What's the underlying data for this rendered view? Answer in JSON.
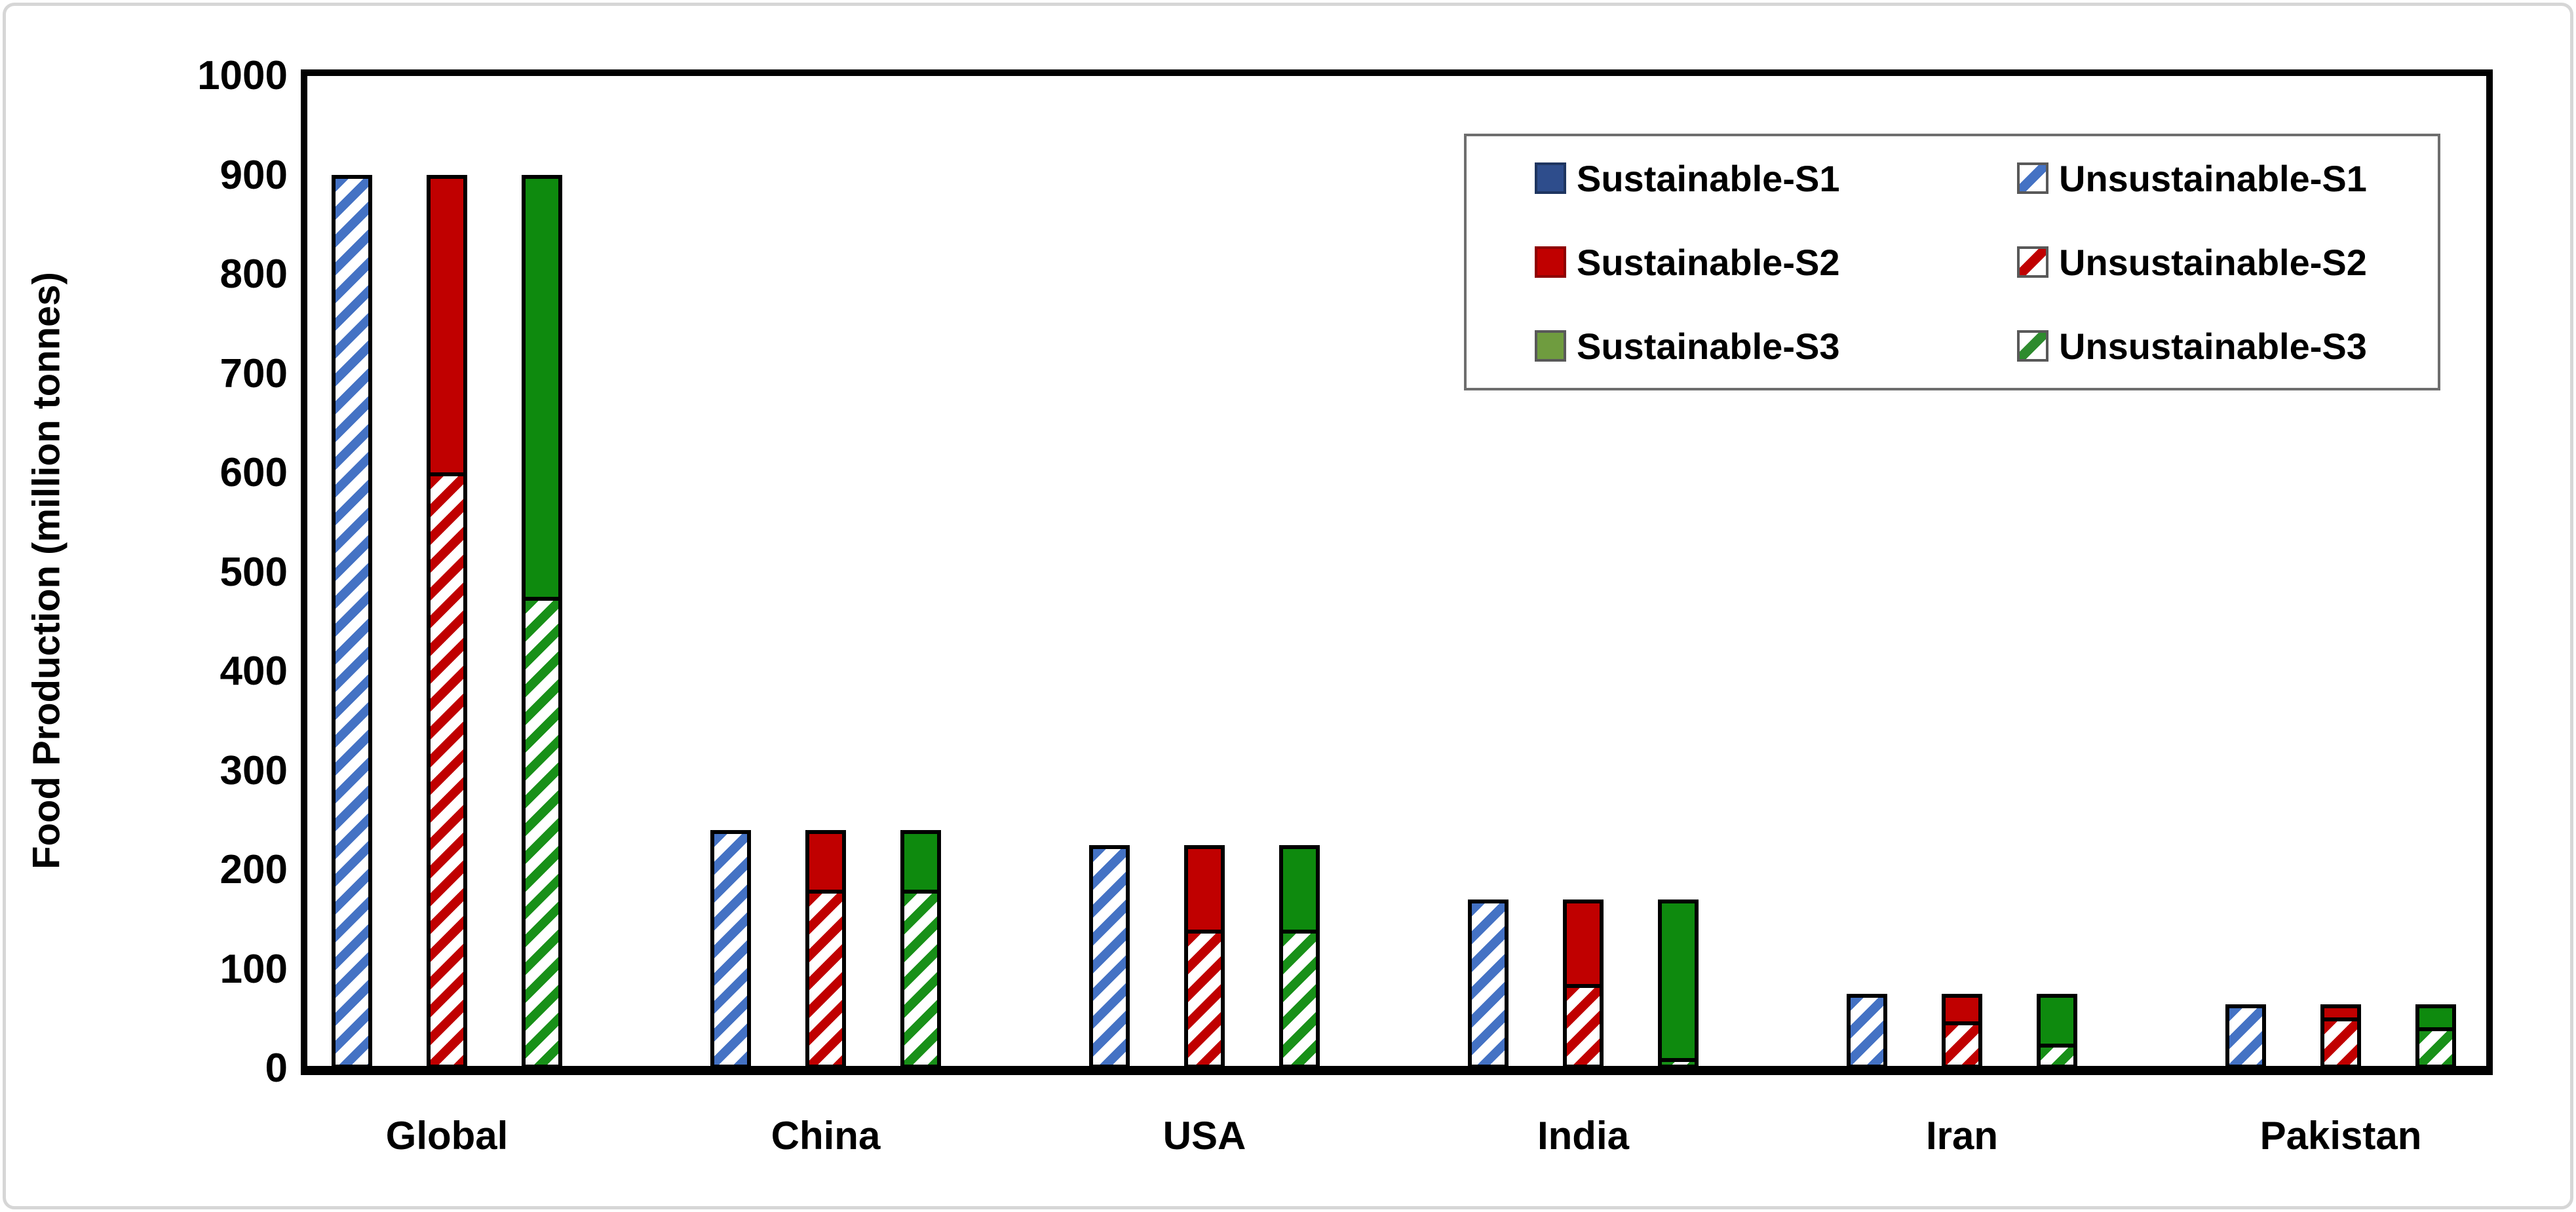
{
  "figure": {
    "background": "#ffffff",
    "border_color": "#d6d6d6",
    "axis_color": "#000000"
  },
  "chart_data": {
    "type": "bar",
    "stacked": true,
    "title": "",
    "xlabel": "",
    "ylabel": "Food Production (million tonnes)",
    "ylim": [
      0,
      1000
    ],
    "yticks": [
      0,
      100,
      200,
      300,
      400,
      500,
      600,
      700,
      800,
      900,
      1000
    ],
    "grid": false,
    "legend_position": "top-right",
    "categories": [
      "Global",
      "China",
      "USA",
      "India",
      "Iran",
      "Pakistan"
    ],
    "scenarios": [
      "S1",
      "S2",
      "S3"
    ],
    "bar_note": "Each country has three stacked bars (S1, S2, S3): hatched unsustainable portion on the bottom, solid sustainable portion on top",
    "series": [
      {
        "name": "Sustainable-S1",
        "pattern": "solid",
        "color": "#2E4D8C",
        "values": [
          0,
          0,
          0,
          0,
          0,
          0
        ]
      },
      {
        "name": "Unsustainable-S1",
        "pattern": "hatch",
        "color": "#4472C4",
        "values": [
          900,
          240,
          225,
          170,
          75,
          65
        ]
      },
      {
        "name": "Sustainable-S2",
        "pattern": "solid",
        "color": "#C00000",
        "values": [
          300,
          60,
          85,
          85,
          28,
          13
        ]
      },
      {
        "name": "Unsustainable-S2",
        "pattern": "hatch",
        "color": "#C00000",
        "values": [
          600,
          180,
          140,
          85,
          47,
          52
        ]
      },
      {
        "name": "Sustainable-S3",
        "pattern": "solid",
        "color": "#0E8A0E",
        "values": [
          425,
          60,
          85,
          160,
          50,
          23
        ]
      },
      {
        "name": "Unsustainable-S3",
        "pattern": "hatch",
        "color": "#189018",
        "values": [
          475,
          180,
          140,
          10,
          25,
          42
        ]
      }
    ],
    "totals_per_country": [
      900,
      240,
      225,
      170,
      75,
      65
    ],
    "legend": {
      "items": [
        {
          "label": "Sustainable-S1",
          "swatch": "solid",
          "color": "#2E4D8C",
          "border": "#1E3560"
        },
        {
          "label": "Unsustainable-S1",
          "swatch": "hatch",
          "color": "#4472C4",
          "border": "#595959"
        },
        {
          "label": "Sustainable-S2",
          "swatch": "solid",
          "color": "#C00000",
          "border": "#8E0000"
        },
        {
          "label": "Unsustainable-S2",
          "swatch": "hatch",
          "color": "#C00000",
          "border": "#595959"
        },
        {
          "label": "Sustainable-S3",
          "swatch": "solid",
          "color": "#6F9C3F",
          "border": "#595959"
        },
        {
          "label": "Unsustainable-S3",
          "swatch": "hatch",
          "color": "#2E8B2E",
          "border": "#595959"
        }
      ]
    }
  }
}
